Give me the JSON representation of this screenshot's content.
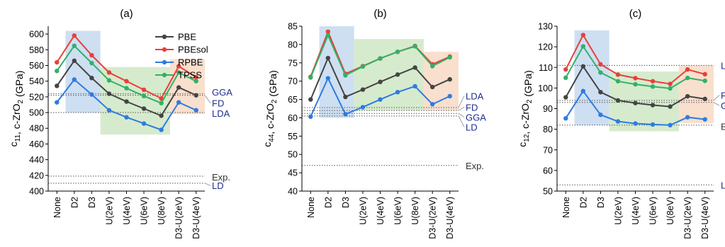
{
  "chart_data": [
    {
      "type": "line",
      "panel_label": "(a)",
      "ylabel_main": "c",
      "ylabel_sub": "11",
      "ylabel_rest": ", c-ZrO",
      "ylabel_sub2": "2",
      "ylabel_unit": " (GPa)",
      "categories": [
        "None",
        "D2",
        "D3",
        "U(2eV)",
        "U(4eV)",
        "U(6eV)",
        "U(8eV)",
        "D3-U(2eV)",
        "D3-U(4eV)"
      ],
      "ylim": [
        400,
        610
      ],
      "yticks": [
        400,
        420,
        440,
        460,
        480,
        500,
        520,
        540,
        560,
        580,
        600
      ],
      "series": [
        {
          "name": "PBE",
          "color": "#444444",
          "values": [
            534,
            566,
            544,
            524,
            514,
            505,
            496,
            532,
            522
          ]
        },
        {
          "name": "PBEsol",
          "color": "#e8403a",
          "values": [
            564,
            598,
            573,
            551,
            540,
            529,
            518,
            559,
            545
          ]
        },
        {
          "name": "RPBE",
          "color": "#2f7be0",
          "values": [
            513,
            542,
            523,
            503,
            494,
            486,
            478,
            513,
            503
          ]
        },
        {
          "name": "TPSS",
          "color": "#33b068",
          "values": [
            553,
            585,
            563,
            541,
            531,
            521,
            512,
            551,
            540
          ]
        }
      ],
      "shaded": [
        {
          "from": "D2",
          "to": "D3",
          "y0": 500,
          "y1": 604,
          "color": "#c6d9f0"
        },
        {
          "from": "U(2eV)",
          "to": "U(8eV)",
          "y0": 472,
          "y1": 558,
          "color": "#cfe8c4"
        },
        {
          "from": "D3-U(2eV)",
          "to": "D3-U(4eV)",
          "y0": 498,
          "y1": 568,
          "color": "#f8d9c4"
        }
      ],
      "references": [
        {
          "label": "GGA",
          "value": 524,
          "color": "#1f2d8f",
          "label_at": 526
        },
        {
          "label": "FD",
          "value": 522,
          "color": "#1f2d8f",
          "label_at": 512
        },
        {
          "label": "LDA",
          "value": 500,
          "color": "#1f2d8f",
          "label_at": 499
        },
        {
          "label": "Exp.",
          "value": 419,
          "color": "#333333",
          "label_at": 418
        },
        {
          "label": "LD",
          "value": 410,
          "color": "#1f2d8f",
          "label_at": 407
        }
      ]
    },
    {
      "type": "line",
      "panel_label": "(b)",
      "ylabel_main": "c",
      "ylabel_sub": "44",
      "ylabel_rest": ", c-ZrO",
      "ylabel_sub2": "2",
      "ylabel_unit": " (GPa)",
      "categories": [
        "None",
        "D2",
        "D3",
        "U(2eV)",
        "U(4eV)",
        "U(6eV)",
        "U(8eV)",
        "D3-U(2eV)",
        "D3-U(4eV)"
      ],
      "ylim": [
        40,
        85
      ],
      "yticks": [
        40,
        45,
        50,
        55,
        60,
        65,
        70,
        75,
        80,
        85
      ],
      "series": [
        {
          "name": "PBE",
          "color": "#444444",
          "values": [
            65.0,
            76.3,
            65.7,
            67.7,
            69.8,
            71.8,
            73.7,
            68.4,
            70.5
          ]
        },
        {
          "name": "PBEsol",
          "color": "#e8403a",
          "values": [
            71.2,
            83.5,
            72.0,
            74.1,
            76.2,
            78.0,
            79.6,
            74.6,
            76.7
          ]
        },
        {
          "name": "RPBE",
          "color": "#2f7be0",
          "values": [
            60.3,
            70.8,
            61.0,
            62.9,
            65.0,
            67.0,
            68.6,
            63.7,
            65.9
          ]
        },
        {
          "name": "TPSS",
          "color": "#33b068",
          "values": [
            71.0,
            82.5,
            71.6,
            74.0,
            76.2,
            78.0,
            79.5,
            74.1,
            76.5
          ]
        }
      ],
      "shaded": [
        {
          "from": "D2",
          "to": "D3",
          "y0": 60,
          "y1": 85,
          "color": "#c6d9f0"
        },
        {
          "from": "U(2eV)",
          "to": "U(8eV)",
          "y0": 62,
          "y1": 81.5,
          "color": "#cfe8c4"
        },
        {
          "from": "D3-U(2eV)",
          "to": "D3-U(4eV)",
          "y0": 62,
          "y1": 78,
          "color": "#f8d9c4"
        }
      ],
      "references": [
        {
          "label": "LDA",
          "value": 62.8,
          "color": "#1f2d8f",
          "label_at": 66
        },
        {
          "label": "FD",
          "value": 62.0,
          "color": "#1f2d8f",
          "label_at": 62.9
        },
        {
          "label": "GGA",
          "value": 61.2,
          "color": "#1f2d8f",
          "label_at": 60.2
        },
        {
          "label": "LD",
          "value": 60.5,
          "color": "#1f2d8f",
          "label_at": 57.5
        },
        {
          "label": "Exp.",
          "value": 47.0,
          "color": "#333333",
          "label_at": 47.0
        }
      ]
    },
    {
      "type": "line",
      "panel_label": "(c)",
      "ylabel_main": "c",
      "ylabel_sub": "12",
      "ylabel_rest": ", c-ZrO",
      "ylabel_sub2": "2",
      "ylabel_unit": " (GPa)",
      "categories": [
        "None",
        "D2",
        "D3",
        "U(2eV)",
        "U(4eV)",
        "U(6eV)",
        "U(8eV)",
        "D3-U(2eV)",
        "D3-U(4eV)"
      ],
      "ylim": [
        50,
        130
      ],
      "yticks": [
        50,
        60,
        70,
        80,
        90,
        100,
        110,
        120,
        130
      ],
      "series": [
        {
          "name": "PBE",
          "color": "#444444",
          "values": [
            95.5,
            110.5,
            98.0,
            94.0,
            92.7,
            91.7,
            91.0,
            96.0,
            94.7
          ]
        },
        {
          "name": "PBEsol",
          "color": "#e8403a",
          "values": [
            109.0,
            125.7,
            111.5,
            106.5,
            104.8,
            103.3,
            102.0,
            109.0,
            106.7
          ]
        },
        {
          "name": "RPBE",
          "color": "#2f7be0",
          "values": [
            85.3,
            98.5,
            87.0,
            83.8,
            82.8,
            82.3,
            82.0,
            85.8,
            84.8
          ]
        },
        {
          "name": "TPSS",
          "color": "#33b068",
          "values": [
            105.0,
            120.2,
            107.5,
            103.3,
            101.8,
            100.7,
            99.8,
            104.9,
            103.5
          ]
        }
      ],
      "shaded": [
        {
          "from": "D2",
          "to": "D3",
          "y0": 82,
          "y1": 128,
          "color": "#c6d9f0"
        },
        {
          "from": "U(2eV)",
          "to": "U(8eV)",
          "y0": 79,
          "y1": 108,
          "color": "#cfe8c4"
        },
        {
          "from": "D3-U(2eV)",
          "to": "D3-U(4eV)",
          "y0": 83,
          "y1": 111,
          "color": "#f8d9c4"
        }
      ],
      "references": [
        {
          "label": "LDA",
          "value": 111.0,
          "color": "#1f2d8f",
          "label_at": 111.0
        },
        {
          "label": "FD",
          "value": 94.0,
          "color": "#1f2d8f",
          "label_at": 96.5
        },
        {
          "label": "GGA",
          "value": 93.0,
          "color": "#1f2d8f",
          "label_at": 91.5
        },
        {
          "label": "Exp.",
          "value": 82.0,
          "color": "#333333",
          "label_at": 81.5
        },
        {
          "label": "LD",
          "value": 53.0,
          "color": "#1f2d8f",
          "label_at": 53.0
        }
      ]
    }
  ]
}
